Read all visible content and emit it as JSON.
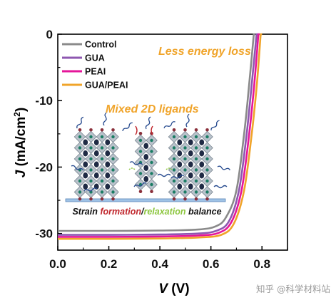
{
  "chart_data": {
    "type": "line",
    "xlabel": "V (V)",
    "xlabel_parts": {
      "var": "V",
      "unit": " (V)"
    },
    "ylabel_parts": {
      "var": "J",
      "unit": " (mA/cm",
      "sup": "2",
      "close": ")"
    },
    "xlim": [
      0.0,
      0.9
    ],
    "ylim": [
      -32.5,
      0
    ],
    "x_ticks": [
      0.0,
      0.2,
      0.4,
      0.6,
      0.8
    ],
    "x_tick_labels": [
      "0.0",
      "0.2",
      "0.4",
      "0.6",
      "0.8"
    ],
    "y_ticks": [
      0,
      -10,
      -20,
      -30
    ],
    "y_tick_labels": [
      "0",
      "-10",
      "-20",
      "-30"
    ],
    "grid": false,
    "legend_position": "top-left",
    "series": [
      {
        "name": "Control",
        "color": "#8a8a8a",
        "jsc": -29.6,
        "voc": 0.768,
        "fill_factor_knee": 0.62,
        "x": [
          0.0,
          0.2,
          0.4,
          0.55,
          0.62,
          0.66,
          0.7,
          0.73,
          0.75,
          0.768
        ],
        "y": [
          -29.6,
          -29.6,
          -29.55,
          -29.4,
          -28.9,
          -27.5,
          -23.5,
          -15.0,
          -7.5,
          0
        ]
      },
      {
        "name": "GUA",
        "color": "#8e57b0",
        "jsc": -30.2,
        "voc": 0.779,
        "x": [
          0.0,
          0.2,
          0.4,
          0.55,
          0.62,
          0.67,
          0.71,
          0.74,
          0.76,
          0.779
        ],
        "y": [
          -30.2,
          -30.2,
          -30.15,
          -30.0,
          -29.6,
          -28.2,
          -23.5,
          -15.0,
          -7.5,
          0
        ]
      },
      {
        "name": "PEAI",
        "color": "#e5169a",
        "jsc": -30.5,
        "voc": 0.786,
        "x": [
          0.0,
          0.2,
          0.4,
          0.55,
          0.63,
          0.68,
          0.72,
          0.75,
          0.77,
          0.786
        ],
        "y": [
          -30.5,
          -30.5,
          -30.45,
          -30.3,
          -29.9,
          -28.3,
          -23.5,
          -15.0,
          -7.5,
          0
        ]
      },
      {
        "name": "GUA/PEAI",
        "color": "#f0a42a",
        "jsc": -30.8,
        "voc": 0.795,
        "x": [
          0.0,
          0.2,
          0.4,
          0.55,
          0.64,
          0.69,
          0.73,
          0.76,
          0.78,
          0.795
        ],
        "y": [
          -30.8,
          -30.8,
          -30.75,
          -30.6,
          -30.2,
          -28.5,
          -23.5,
          -15.0,
          -7.5,
          0
        ]
      }
    ],
    "annotations": [
      {
        "text": "Less energy loss",
        "color": "#f0a42a"
      },
      {
        "text": "Mixed 2D ligands",
        "color": "#f0a42a"
      }
    ],
    "inset_caption": {
      "part1": "Strain ",
      "part1_color": "#111111",
      "part2": "formation",
      "part2_color": "#c0272d",
      "part3": "/",
      "part3_color": "#111111",
      "part4": "relaxation",
      "part4_color": "#8dc63f",
      "part5": " balance",
      "part5_color": "#111111"
    }
  },
  "watermark": "知乎 @科学材料站"
}
